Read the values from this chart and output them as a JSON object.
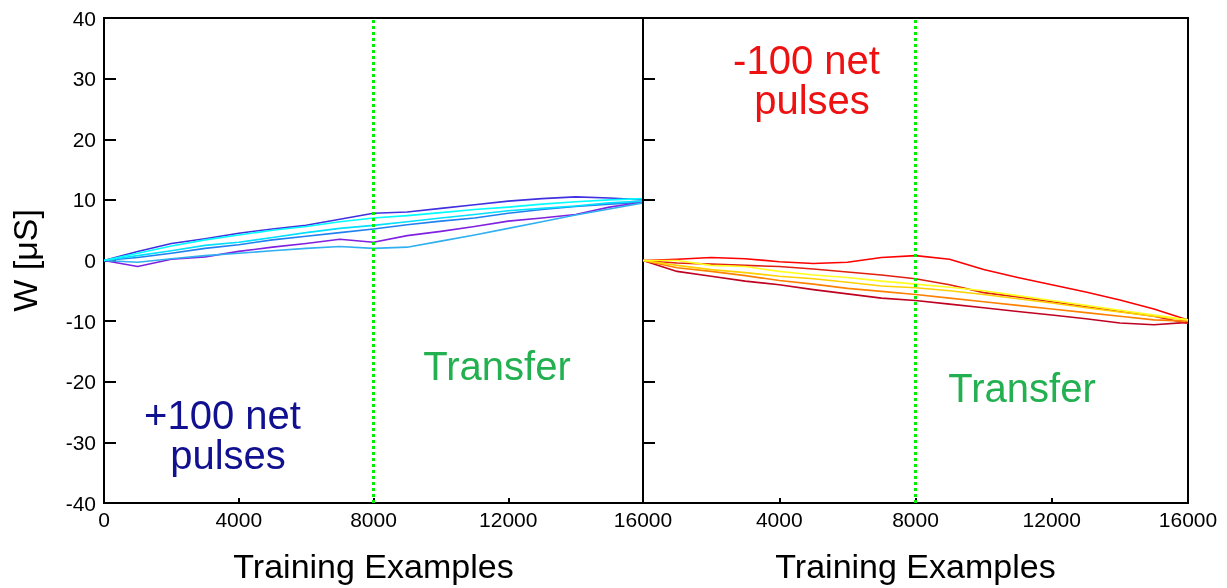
{
  "chart_data": [
    {
      "type": "line",
      "xlabel": "Training Examples",
      "ylabel": "W [μS]",
      "x": [
        0,
        1000,
        2000,
        3000,
        4000,
        5000,
        6000,
        7000,
        8000,
        9000,
        10000,
        11000,
        12000,
        13000,
        14000,
        15000,
        16000
      ],
      "xlim": [
        0,
        16000
      ],
      "xticks": [
        0,
        4000,
        8000,
        12000,
        16000
      ],
      "ylim": [
        -40,
        40
      ],
      "yticks": [
        -40,
        -30,
        -20,
        -10,
        0,
        10,
        20,
        30,
        40
      ],
      "grid": false,
      "marker": "none",
      "line_style": "solid",
      "ref_lines": [
        {
          "axis": "x",
          "value": 8000,
          "color": "#00ee00",
          "line_style": "dotted"
        }
      ],
      "annotations": [
        "Transfer",
        "+100 net pulses"
      ],
      "series": [
        {
          "color": "#4030e0",
          "values": [
            0,
            1.5,
            2.8,
            3.6,
            4.5,
            5.2,
            5.8,
            6.8,
            7.8,
            8.0,
            8.6,
            9.2,
            9.8,
            10.2,
            10.5,
            10.3,
            10.0
          ]
        },
        {
          "color": "#2080f0",
          "values": [
            0,
            0.5,
            1.2,
            2.0,
            2.6,
            3.4,
            4.0,
            4.6,
            5.2,
            5.9,
            6.5,
            7.0,
            7.8,
            8.4,
            8.9,
            9.3,
            9.6
          ]
        },
        {
          "color": "#8020e0",
          "values": [
            0,
            -1.0,
            0.2,
            0.6,
            1.5,
            2.2,
            2.8,
            3.5,
            3.0,
            4.1,
            4.8,
            5.6,
            6.5,
            7.0,
            7.6,
            8.8,
            9.6
          ]
        },
        {
          "color": "#30b0f0",
          "values": [
            0,
            -0.3,
            0.3,
            0.8,
            1.2,
            1.6,
            2.0,
            2.3,
            2.0,
            2.2,
            3.2,
            4.2,
            5.3,
            6.4,
            7.5,
            8.5,
            9.5
          ]
        },
        {
          "color": "#00e0ff",
          "values": [
            0,
            0.8,
            1.6,
            2.5,
            3.0,
            3.8,
            4.6,
            5.3,
            5.8,
            6.4,
            7.0,
            7.6,
            8.2,
            8.6,
            9.0,
            9.5,
            9.8
          ]
        },
        {
          "color": "#00ffff",
          "values": [
            0,
            1.2,
            2.4,
            3.4,
            4.2,
            5.0,
            5.6,
            6.4,
            7.0,
            7.4,
            7.9,
            8.4,
            8.8,
            9.3,
            9.7,
            10.0,
            10.2
          ]
        }
      ]
    },
    {
      "type": "line",
      "xlabel": "Training Examples",
      "x": [
        0,
        1000,
        2000,
        3000,
        4000,
        5000,
        6000,
        7000,
        8000,
        9000,
        10000,
        11000,
        12000,
        13000,
        14000,
        15000,
        16000
      ],
      "xlim": [
        0,
        16000
      ],
      "xticks": [
        {
          "value": 0,
          "label": null
        },
        4000,
        8000,
        12000,
        16000
      ],
      "ylim": [
        -40,
        40
      ],
      "yticks": [
        -40,
        -30,
        -20,
        -10,
        0,
        10,
        20,
        30,
        40
      ],
      "tick_labels": "x",
      "grid": false,
      "marker": "none",
      "line_style": "solid",
      "ref_lines": [
        {
          "axis": "x",
          "value": 8000,
          "color": "#00ee00",
          "line_style": "dotted"
        }
      ],
      "annotations": [
        "Transfer",
        "-100 net pulses"
      ],
      "series": [
        {
          "color": "#ff0000",
          "values": [
            0,
            0.2,
            0.5,
            0.3,
            -0.2,
            -0.5,
            -0.3,
            0.5,
            0.8,
            0.2,
            -1.5,
            -2.8,
            -4.0,
            -5.2,
            -6.5,
            -8.0,
            -9.8
          ]
        },
        {
          "color": "#c00020",
          "values": [
            0,
            -1.8,
            -2.6,
            -3.4,
            -4.0,
            -4.8,
            -5.5,
            -6.2,
            -6.6,
            -7.2,
            -7.8,
            -8.4,
            -9.0,
            -9.6,
            -10.3,
            -10.6,
            -10.2
          ]
        },
        {
          "color": "#e02010",
          "values": [
            0,
            -0.4,
            -0.6,
            -0.8,
            -1.0,
            -1.4,
            -1.9,
            -2.4,
            -3.0,
            -4.0,
            -5.3,
            -6.0,
            -6.8,
            -7.6,
            -8.4,
            -9.2,
            -10.4
          ]
        },
        {
          "color": "#ff8000",
          "values": [
            0,
            -1.2,
            -1.8,
            -2.5,
            -3.3,
            -3.9,
            -4.6,
            -5.1,
            -5.6,
            -6.2,
            -6.8,
            -7.4,
            -8.0,
            -8.6,
            -9.2,
            -9.8,
            -10.0
          ]
        },
        {
          "color": "#ffd000",
          "values": [
            0,
            -0.8,
            -1.5,
            -2.0,
            -2.6,
            -3.0,
            -3.6,
            -4.2,
            -4.5,
            -5.0,
            -5.6,
            -6.3,
            -7.0,
            -7.8,
            -8.5,
            -9.2,
            -9.8
          ]
        },
        {
          "color": "#ffff20",
          "values": [
            0,
            0.0,
            -0.8,
            -1.0,
            -1.8,
            -2.4,
            -2.8,
            -3.4,
            -3.9,
            -4.4,
            -5.0,
            -5.8,
            -6.6,
            -7.4,
            -8.2,
            -9.0,
            -9.8
          ]
        }
      ]
    }
  ]
}
